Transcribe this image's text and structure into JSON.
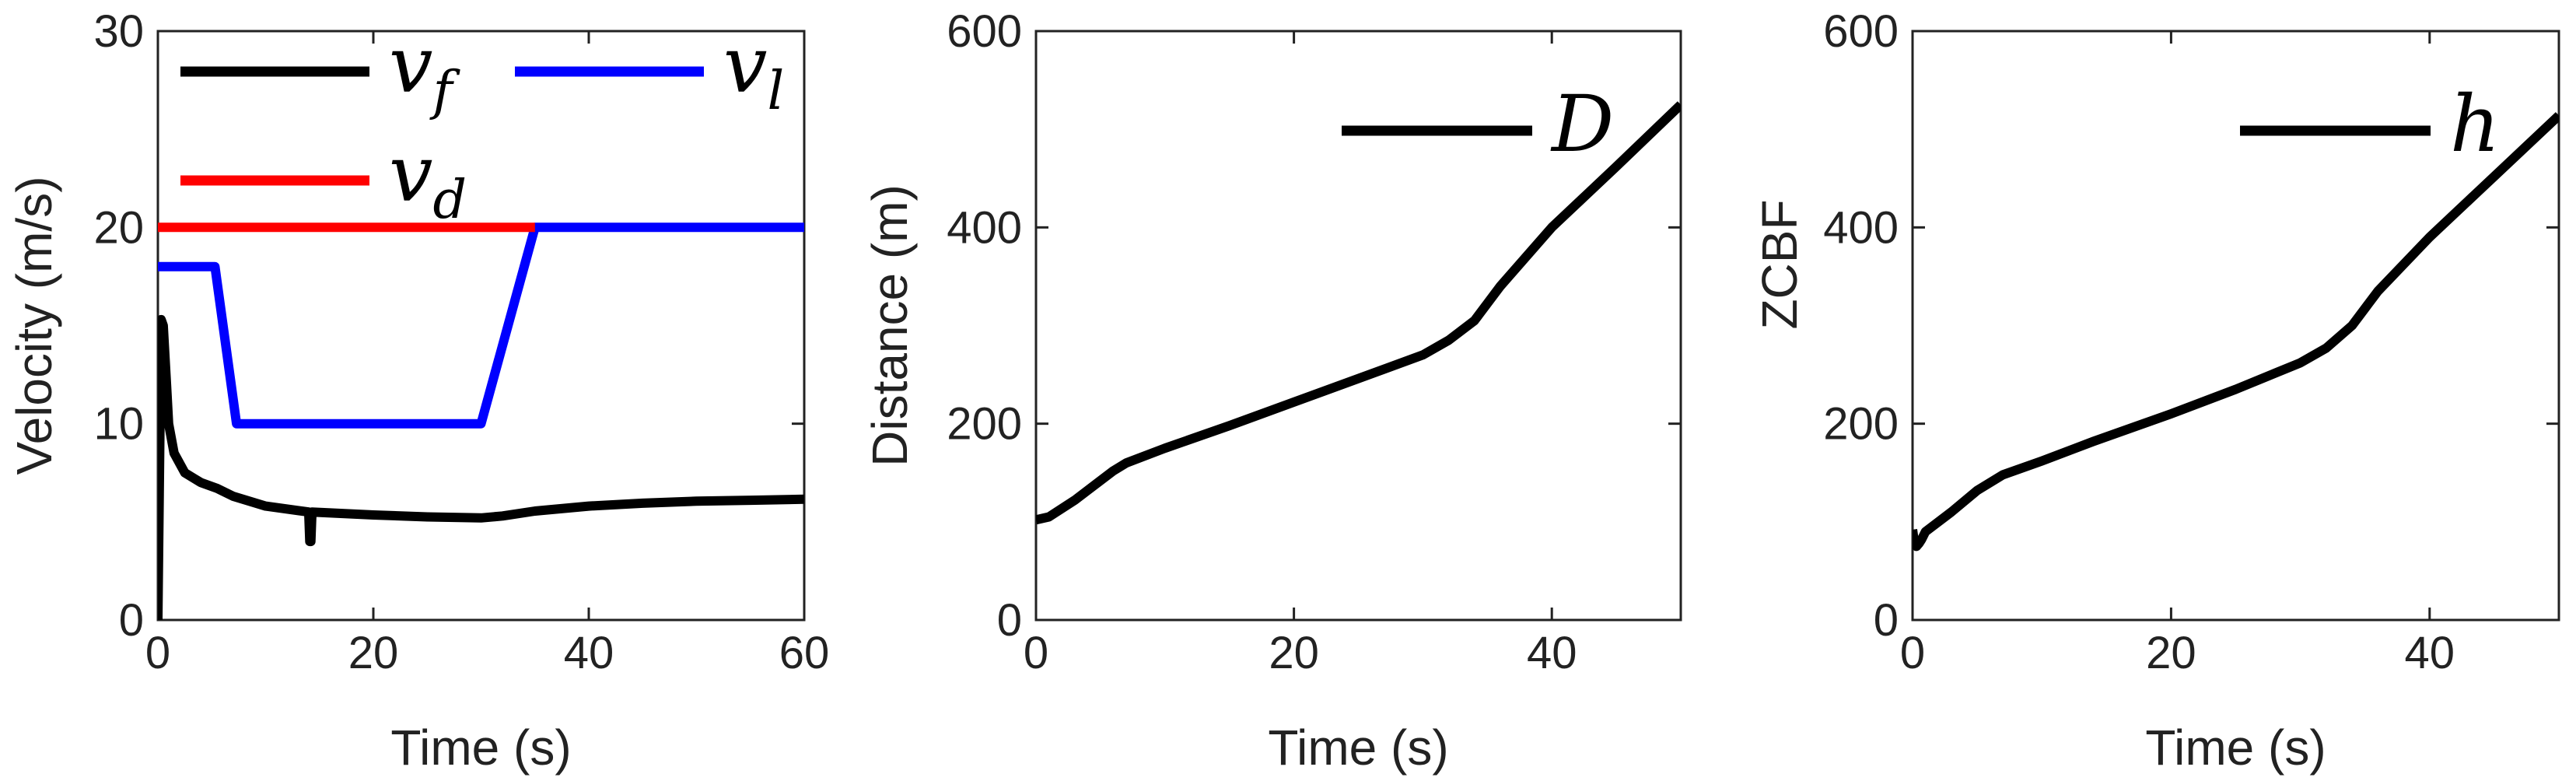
{
  "chart_data": [
    {
      "type": "line",
      "xlabel": "Time (s)",
      "ylabel": "Velocity (m/s)",
      "xlim": [
        0,
        60
      ],
      "ylim": [
        0,
        30
      ],
      "xticks": [
        0,
        20,
        40,
        60
      ],
      "yticks": [
        0,
        10,
        20,
        30
      ],
      "grid": false,
      "legend_position": "top",
      "series": [
        {
          "name": "v_f",
          "label_main": "v",
          "label_sub": "f",
          "color": "#000000",
          "x": [
            0,
            0.3,
            0.5,
            0.8,
            1,
            1.5,
            2.5,
            4,
            5.5,
            7,
            10,
            14,
            14.1,
            14.2,
            14.3,
            20,
            25,
            30,
            32,
            35,
            40,
            45,
            50,
            55,
            60
          ],
          "y": [
            0,
            15.3,
            15.0,
            12.0,
            10.0,
            8.5,
            7.5,
            7.0,
            6.7,
            6.3,
            5.8,
            5.5,
            4.0,
            4.0,
            5.5,
            5.35,
            5.25,
            5.2,
            5.3,
            5.55,
            5.8,
            5.95,
            6.05,
            6.1,
            6.15
          ]
        },
        {
          "name": "v_l",
          "label_main": "v",
          "label_sub": "l",
          "color": "#0000ff",
          "x": [
            0,
            5.3,
            7.3,
            30,
            35,
            60
          ],
          "y": [
            18,
            18,
            10,
            10,
            20,
            20
          ]
        },
        {
          "name": "v_d",
          "label_main": "v",
          "label_sub": "d",
          "color": "#ff0000",
          "x": [
            0,
            35
          ],
          "y": [
            20,
            20
          ]
        }
      ]
    },
    {
      "type": "line",
      "xlabel": "Time (s)",
      "ylabel": "Distance (m)",
      "xlim": [
        0,
        50
      ],
      "ylim": [
        0,
        600
      ],
      "xticks": [
        0,
        20,
        40
      ],
      "yticks": [
        0,
        200,
        400,
        600
      ],
      "grid": false,
      "legend_position": "top-right",
      "series": [
        {
          "name": "D",
          "label_main": "D",
          "label_sub": "",
          "color": "#000000",
          "x": [
            0,
            1,
            3,
            5,
            6,
            7,
            10,
            15,
            20,
            25,
            30,
            32,
            34,
            36,
            40,
            45,
            50
          ],
          "y": [
            102,
            105,
            122,
            142,
            152,
            160,
            175,
            198,
            222,
            246,
            270,
            285,
            305,
            340,
            400,
            462,
            525
          ]
        }
      ]
    },
    {
      "type": "line",
      "xlabel": "Time (s)",
      "ylabel": "ZCBF",
      "xlim": [
        0,
        50
      ],
      "ylim": [
        0,
        600
      ],
      "xticks": [
        0,
        20,
        40
      ],
      "yticks": [
        0,
        200,
        400,
        600
      ],
      "grid": false,
      "legend_position": "top-right",
      "series": [
        {
          "name": "h",
          "label_main": "h",
          "label_sub": "",
          "color": "#000000",
          "x": [
            0,
            0.15,
            0.3,
            0.5,
            0.7,
            1,
            3,
            5,
            7,
            10,
            14,
            20,
            25,
            30,
            32,
            34,
            36,
            40,
            45,
            50
          ],
          "y": [
            92,
            78,
            75,
            78,
            82,
            90,
            110,
            132,
            148,
            162,
            182,
            210,
            235,
            262,
            277,
            300,
            335,
            390,
            452,
            514
          ]
        }
      ]
    }
  ]
}
